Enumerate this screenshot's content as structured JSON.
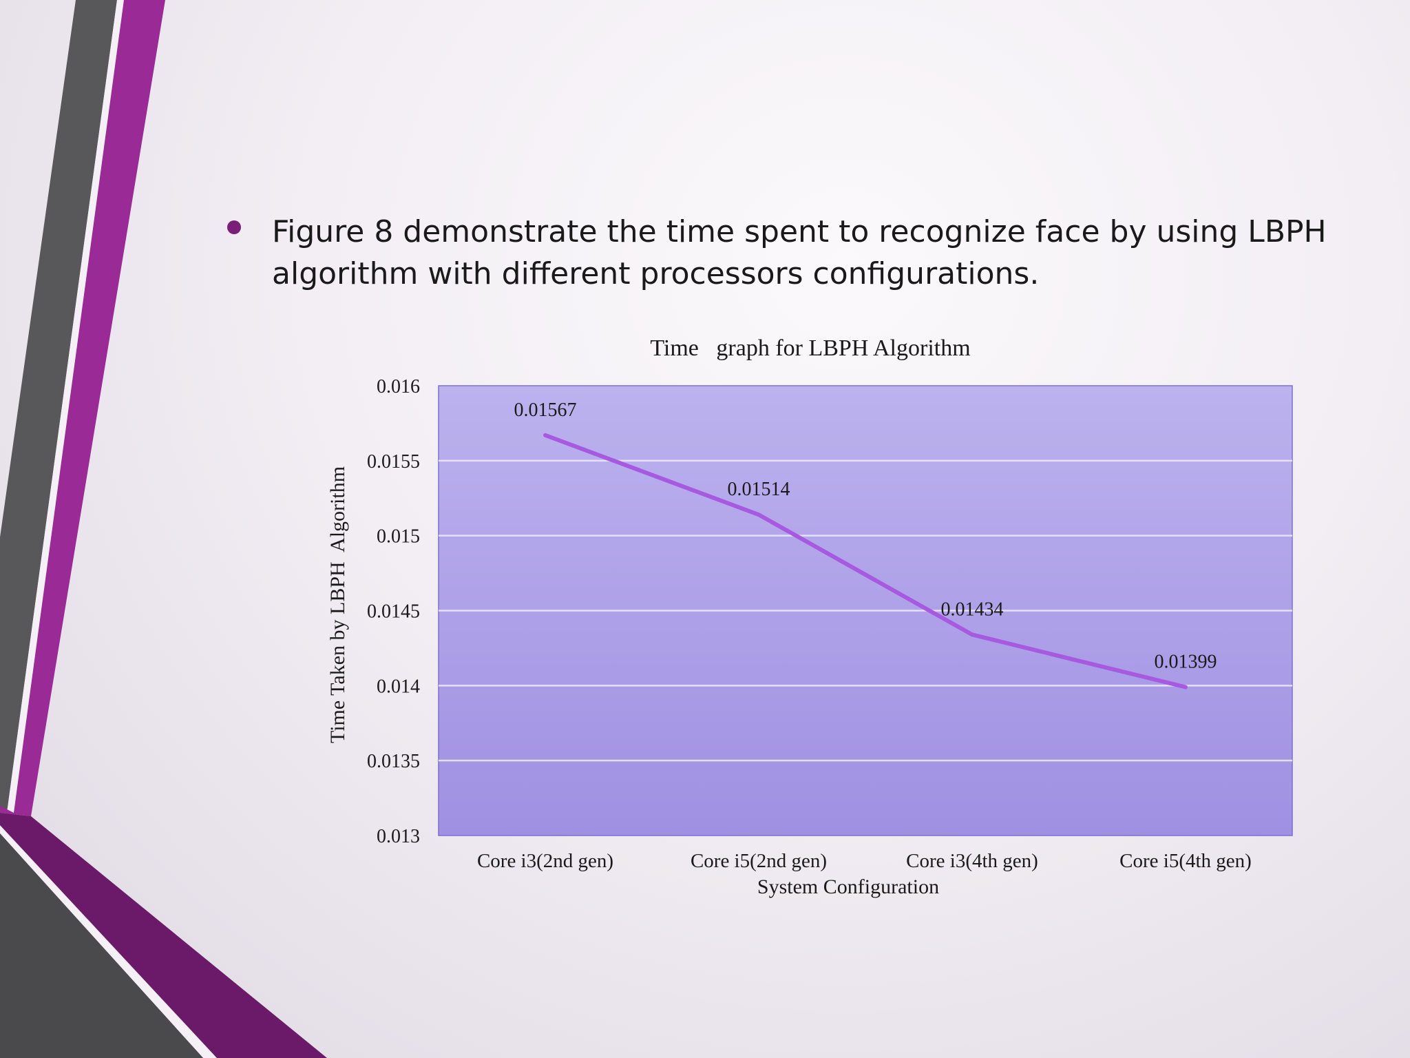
{
  "slide": {
    "bullet_text": "Figure 8 demonstrate the time spent to recognize face by using LBPH algorithm with different processors configurations."
  },
  "colors": {
    "accent_purple": "#9a2a96",
    "dark_purple": "#6a1a68",
    "dark_gray": "#4a4a4c",
    "plot_area_top": "#bcb2ee",
    "plot_area_bottom": "#a090e2",
    "line": "#a75ae0"
  },
  "chart_data": {
    "type": "line",
    "title": "Time   graph for LBPH Algorithm",
    "xlabel": "System Configuration",
    "ylabel": "Time Taken by LBPH  Algorithm",
    "categories": [
      "Core i3(2nd gen)",
      "Core i5(2nd gen)",
      "Core i3(4th gen)",
      "Core i5(4th gen)"
    ],
    "series": [
      {
        "values": [
          0.01567,
          0.01514,
          0.01434,
          0.01399
        ]
      }
    ],
    "data_labels": [
      "0.01567",
      "0.01514",
      "0.01434",
      "0.01399"
    ],
    "ylim": [
      0.013,
      0.016
    ],
    "y_ticks": [
      0.013,
      0.0135,
      0.014,
      0.0145,
      0.015,
      0.0155,
      0.016
    ],
    "y_tick_labels": [
      "0.013",
      "0.0135",
      "0.014",
      "0.0145",
      "0.015",
      "0.0155",
      "0.016"
    ],
    "grid": true,
    "legend": "none"
  }
}
